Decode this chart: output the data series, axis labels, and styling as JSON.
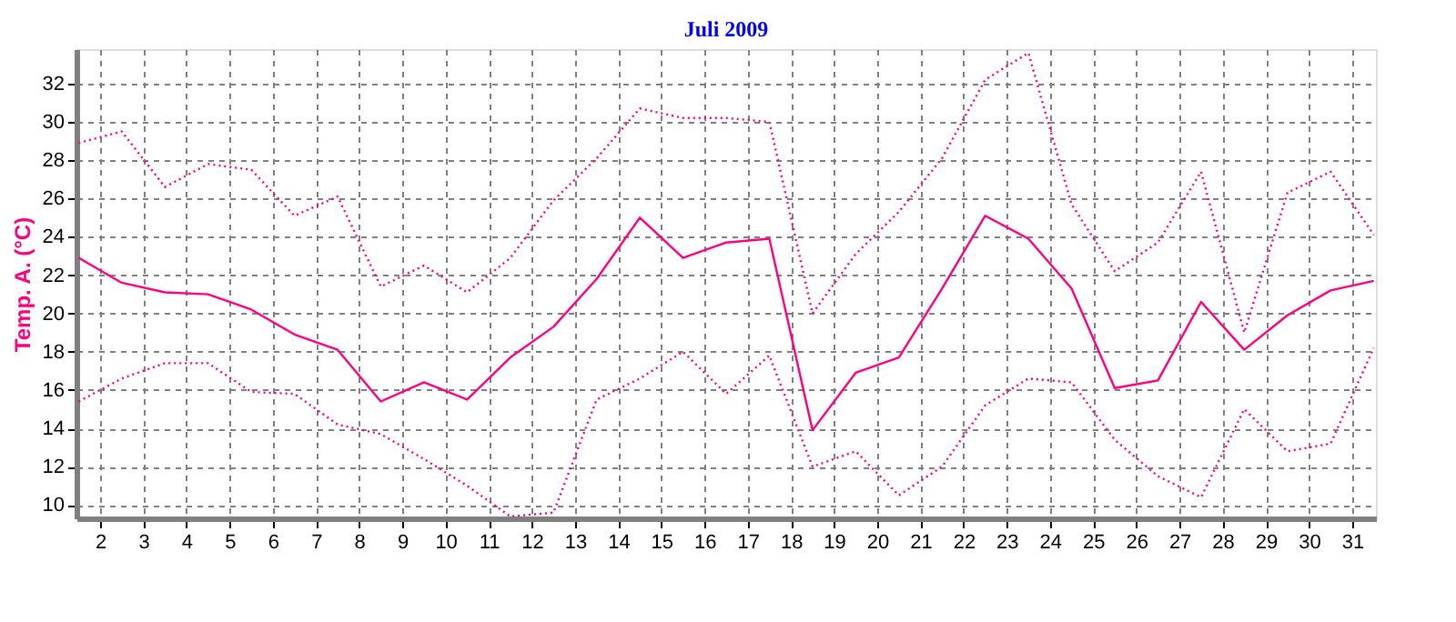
{
  "chart_data": {
    "type": "line",
    "title": "Juli 2009",
    "ylabel": "Temp. A. (°C)",
    "x": [
      1.5,
      2.5,
      3.5,
      4.5,
      5.5,
      6.5,
      7.5,
      8.5,
      9.5,
      10.5,
      11.5,
      12.5,
      13.5,
      14.5,
      15.5,
      16.5,
      17.5,
      18.5,
      19.5,
      20.5,
      21.5,
      22.5,
      23.5,
      24.5,
      25.5,
      26.5,
      27.5,
      28.5,
      29.5,
      30.5,
      31.5
    ],
    "series": [
      {
        "color": "#ff0080",
        "line_style": "dotted",
        "values": [
          28.9,
          29.5,
          26.6,
          27.8,
          27.5,
          25.1,
          26.1,
          21.4,
          22.5,
          21.1,
          22.9,
          25.9,
          28.1,
          30.7,
          30.2,
          30.2,
          30.0,
          20.0,
          23.1,
          25.3,
          28.1,
          32.2,
          33.6,
          25.7,
          22.2,
          23.7,
          27.4,
          19.0,
          26.3,
          27.4,
          24.1
        ]
      },
      {
        "color": "#ff0080",
        "line_style": "solid",
        "values": [
          22.9,
          21.6,
          21.1,
          21.0,
          20.2,
          18.9,
          18.1,
          15.4,
          16.4,
          15.5,
          17.7,
          19.3,
          21.8,
          25.0,
          22.9,
          23.7,
          23.9,
          13.9,
          16.9,
          17.7,
          21.3,
          25.1,
          23.9,
          21.3,
          16.1,
          16.5,
          20.6,
          18.1,
          19.9,
          21.2,
          21.7
        ]
      },
      {
        "color": "#ff0080",
        "line_style": "dotted",
        "values": [
          15.4,
          16.6,
          17.4,
          17.4,
          15.9,
          15.8,
          14.2,
          13.7,
          12.4,
          11.0,
          9.4,
          9.6,
          15.5,
          16.6,
          18.0,
          15.8,
          17.8,
          12.0,
          12.8,
          10.5,
          12.0,
          15.2,
          16.6,
          16.4,
          13.4,
          11.5,
          10.4,
          15.0,
          12.8,
          13.2,
          18.2
        ]
      }
    ],
    "xlim": [
      1.45,
      31.55
    ],
    "xticks": [
      2,
      3,
      4,
      5,
      6,
      7,
      8,
      9,
      10,
      11,
      12,
      13,
      14,
      15,
      16,
      17,
      18,
      19,
      20,
      21,
      22,
      23,
      24,
      25,
      26,
      27,
      28,
      29,
      30,
      31
    ],
    "ylim": [
      9.3,
      33.8
    ],
    "yticks": [
      10,
      12,
      14,
      16,
      18,
      20,
      22,
      24,
      26,
      28,
      30,
      32
    ],
    "grid": true,
    "legend": false,
    "marker": "none"
  }
}
